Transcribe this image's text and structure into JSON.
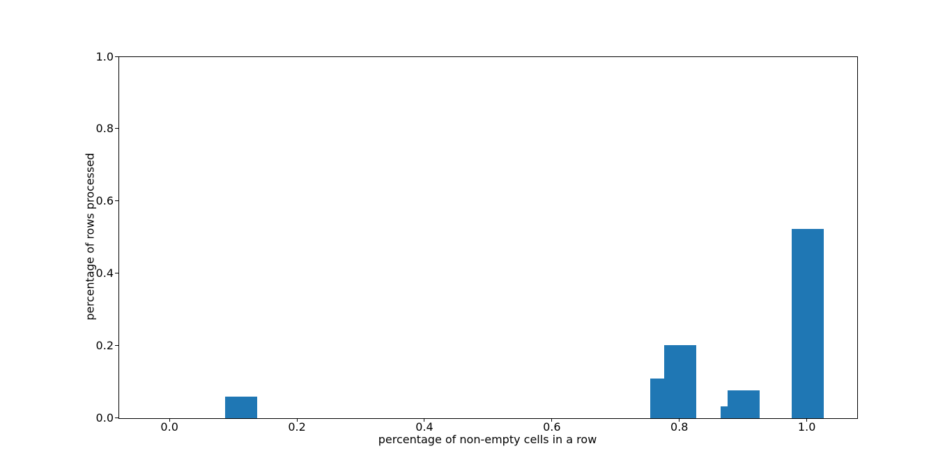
{
  "figure": {
    "background": "#ffffff"
  },
  "chart_data": {
    "type": "bar",
    "title": "",
    "xlabel": "percentage of non-empty cells in a row",
    "ylabel": "percentage of rows processed",
    "x": [
      0.111,
      0.778,
      0.8,
      0.889,
      0.9,
      1.0
    ],
    "values": [
      0.06,
      0.109,
      0.202,
      0.032,
      0.078,
      0.524
    ],
    "bar_width": 0.05,
    "bar_color": "#1f77b4",
    "xlim": [
      -0.08,
      1.078
    ],
    "ylim": [
      0.0,
      1.0
    ],
    "x_ticks": [
      0.0,
      0.2,
      0.4,
      0.6,
      0.8,
      1.0
    ],
    "x_tick_labels": [
      "0.0",
      "0.2",
      "0.4",
      "0.6",
      "0.8",
      "1.0"
    ],
    "y_ticks": [
      0.0,
      0.2,
      0.4,
      0.6,
      0.8,
      1.0
    ],
    "y_tick_labels": [
      "0.0",
      "0.2",
      "0.4",
      "0.6",
      "0.8",
      "1.0"
    ],
    "grid": false,
    "legend": null,
    "spine_color": "#000000",
    "text_color": "#000000"
  }
}
